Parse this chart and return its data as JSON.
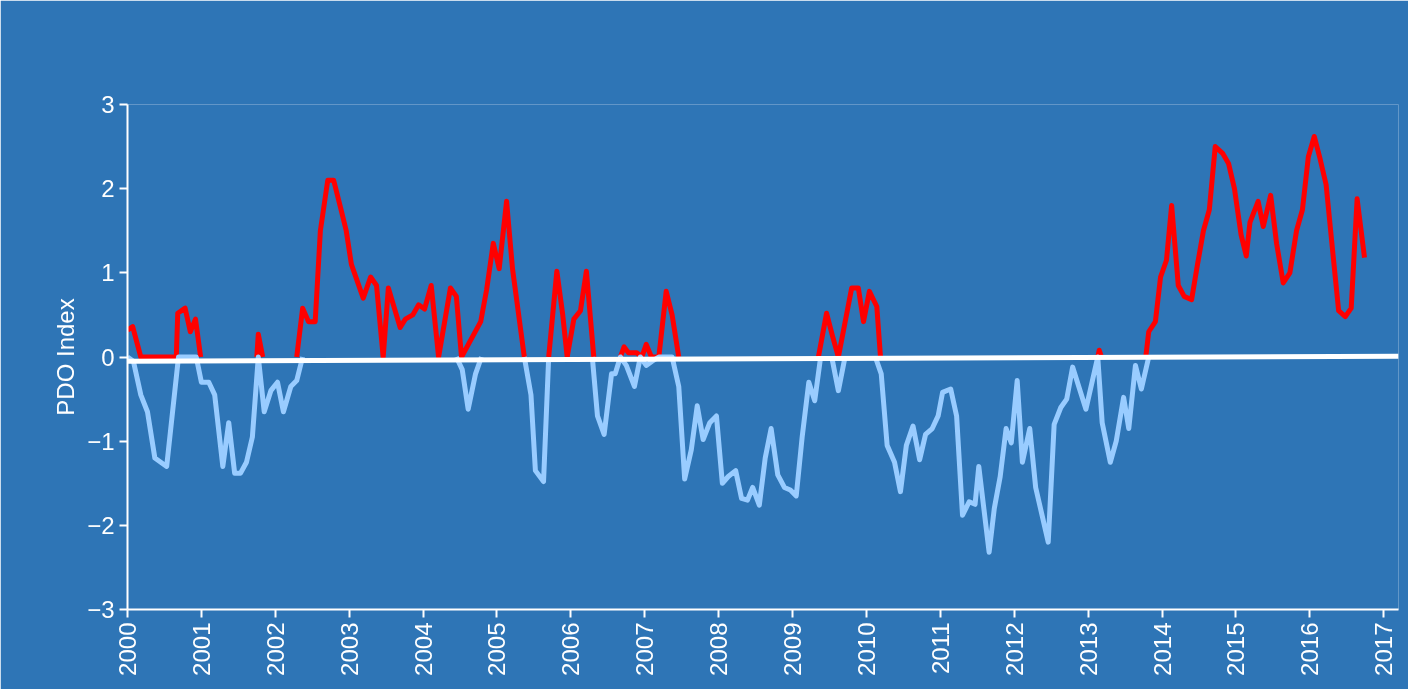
{
  "chart_data": {
    "type": "line",
    "ylabel": "PDO Index",
    "xlim": [
      2000,
      2017.2
    ],
    "ylim": [
      -3,
      3
    ],
    "xticks": [
      2000,
      2001,
      2002,
      2003,
      2004,
      2005,
      2006,
      2007,
      2008,
      2009,
      2010,
      2011,
      2012,
      2013,
      2014,
      2015,
      2016,
      2017
    ],
    "yticks": [
      -3,
      -2,
      -1,
      0,
      1,
      2,
      3
    ],
    "grid": false,
    "marker": "none",
    "line_style": "solid",
    "series": [
      {
        "color": "#ff0000",
        "x": [
          2000.0,
          2000.07,
          2000.18,
          2000.66,
          2000.68,
          2000.78,
          2000.85,
          2000.92,
          2000.99,
          2001.5,
          2001.75,
          2001.77,
          2001.83,
          2002.0,
          2002.29,
          2002.37,
          2002.45,
          2002.54,
          2002.61,
          2002.71,
          2002.79,
          2002.89,
          2002.96,
          2003.03,
          2003.19,
          2003.29,
          2003.37,
          2003.46,
          2003.53,
          2003.69,
          2003.76,
          2003.86,
          2003.94,
          2004.02,
          2004.11,
          2004.21,
          2004.37,
          2004.45,
          2004.52,
          2004.78,
          2004.86,
          2004.95,
          2005.03,
          2005.13,
          2005.21,
          2005.37,
          2005.5,
          2005.7,
          2005.81,
          2005.89,
          2005.95,
          2006.04,
          2006.13,
          2006.21,
          2006.31,
          2006.5,
          2006.67,
          2006.72,
          2006.78,
          2006.89,
          2006.96,
          2007.02,
          2007.09,
          2007.19,
          2007.29,
          2007.37,
          2007.46,
          2008.5,
          2009.35,
          2009.46,
          2009.54,
          2009.62,
          2009.8,
          2009.89,
          2009.96,
          2010.04,
          2010.14,
          2010.19,
          2011.5,
          2013.13,
          2013.15,
          2013.18,
          2013.5,
          2013.78,
          2013.82,
          2013.91,
          2013.98,
          2014.06,
          2014.13,
          2014.22,
          2014.3,
          2014.4,
          2014.48,
          2014.56,
          2014.64,
          2014.72,
          2014.82,
          2014.9,
          2014.98,
          2015.07,
          2015.14,
          2015.19,
          2015.3,
          2015.37,
          2015.47,
          2015.55,
          2015.64,
          2015.73,
          2015.82,
          2015.9,
          2015.98,
          2016.06,
          2016.14,
          2016.22,
          2016.31,
          2016.39,
          2016.48,
          2016.56,
          2016.64,
          2016.74
        ],
        "values": [
          0.32,
          0.36,
          0,
          0,
          0.52,
          0.58,
          0.3,
          0.45,
          0,
          null,
          0,
          0.27,
          0,
          null,
          0,
          0.58,
          0.42,
          0.42,
          1.5,
          2.1,
          2.1,
          1.75,
          1.5,
          1.1,
          0.7,
          0.95,
          0.85,
          0,
          0.82,
          0.35,
          0.45,
          0.5,
          0.62,
          0.57,
          0.85,
          0,
          0.82,
          0.72,
          0,
          0.42,
          0.8,
          1.35,
          1.05,
          1.85,
          1.05,
          0,
          null,
          0,
          1.02,
          0.5,
          0,
          0.45,
          0.55,
          1.02,
          0,
          null,
          0,
          0.12,
          0.05,
          0.05,
          0,
          0.15,
          0,
          0,
          0.78,
          0.5,
          0,
          null,
          0,
          0.52,
          0.25,
          0,
          0.82,
          0.82,
          0.42,
          0.78,
          0.6,
          0,
          null,
          0,
          0.08,
          0,
          null,
          0,
          0.3,
          0.42,
          0.95,
          1.15,
          1.8,
          0.85,
          0.72,
          0.68,
          1.1,
          1.5,
          1.75,
          2.5,
          2.42,
          2.3,
          2.0,
          1.45,
          1.2,
          1.6,
          1.85,
          1.55,
          1.92,
          1.35,
          0.88,
          1.0,
          1.5,
          1.75,
          2.38,
          2.62,
          2.35,
          2.05,
          1.25,
          0.55,
          0.48,
          0.58,
          1.88,
          1.18
        ]
      },
      {
        "color": "#99ccff",
        "x": [
          2000.0,
          2000.08,
          2000.18,
          2000.27,
          2000.37,
          2000.45,
          2000.53,
          2000.69,
          2000.93,
          2001.0,
          2001.1,
          2001.18,
          2001.29,
          2001.37,
          2001.45,
          2001.53,
          2001.61,
          2001.69,
          2001.77,
          2001.85,
          2001.94,
          2002.03,
          2002.11,
          2002.21,
          2002.29,
          2002.37,
          2003.5,
          2004.45,
          2004.53,
          2004.61,
          2004.71,
          2004.79,
          2005.0,
          2005.37,
          2005.46,
          2005.52,
          2005.63,
          2005.7,
          2006.0,
          2006.29,
          2006.36,
          2006.45,
          2006.55,
          2006.6,
          2006.67,
          2006.75,
          2006.86,
          2006.94,
          2007.02,
          2007.1,
          2007.19,
          2007.37,
          2007.46,
          2007.54,
          2007.63,
          2007.71,
          2007.79,
          2007.88,
          2007.97,
          2008.05,
          2008.13,
          2008.23,
          2008.31,
          2008.39,
          2008.46,
          2008.55,
          2008.63,
          2008.71,
          2008.8,
          2008.89,
          2008.97,
          2009.05,
          2009.13,
          2009.22,
          2009.3,
          2009.38,
          2009.45,
          2009.53,
          2009.62,
          2009.71,
          2009.9,
          2010.12,
          2010.2,
          2010.28,
          2010.38,
          2010.46,
          2010.54,
          2010.63,
          2010.72,
          2010.8,
          2010.89,
          2010.97,
          2011.03,
          2011.14,
          2011.22,
          2011.3,
          2011.39,
          2011.47,
          2011.52,
          2011.66,
          2011.73,
          2011.81,
          2011.89,
          2011.96,
          2012.04,
          2012.11,
          2012.21,
          2012.29,
          2012.46,
          2012.54,
          2012.63,
          2012.71,
          2012.79,
          2012.97,
          2013.13,
          2013.19,
          2013.3,
          2013.38,
          2013.48,
          2013.55,
          2013.64,
          2013.72,
          2013.82
        ],
        "values": [
          0,
          -0.05,
          -0.45,
          -0.65,
          -1.2,
          -1.25,
          -1.3,
          0,
          0,
          -0.3,
          -0.3,
          -0.45,
          -1.3,
          -0.78,
          -1.38,
          -1.38,
          -1.25,
          -0.95,
          0,
          -0.65,
          -0.4,
          -0.3,
          -0.65,
          -0.35,
          -0.28,
          0,
          null,
          0,
          -0.15,
          -0.62,
          -0.2,
          0,
          null,
          0,
          -0.45,
          -1.35,
          -1.48,
          0,
          null,
          0,
          -0.7,
          -0.92,
          -0.2,
          -0.2,
          0,
          -0.1,
          -0.35,
          0,
          -0.1,
          -0.05,
          0,
          0,
          -0.35,
          -1.45,
          -1.1,
          -0.58,
          -0.98,
          -0.78,
          -0.7,
          -1.5,
          -1.42,
          -1.35,
          -1.68,
          -1.7,
          -1.55,
          -1.76,
          -1.2,
          -0.85,
          -1.4,
          -1.55,
          -1.58,
          -1.65,
          -0.95,
          -0.3,
          -0.52,
          0,
          null,
          0,
          -0.4,
          0,
          null,
          0,
          -0.2,
          -1.05,
          -1.25,
          -1.6,
          -1.05,
          -0.82,
          -1.22,
          -0.92,
          -0.85,
          -0.7,
          -0.42,
          -0.38,
          -0.7,
          -1.88,
          -1.72,
          -1.75,
          -1.3,
          -2.32,
          -1.8,
          -1.42,
          -0.85,
          -1.02,
          -0.28,
          -1.25,
          -0.85,
          -1.55,
          -2.2,
          -0.8,
          -0.6,
          -0.5,
          -0.12,
          -0.62,
          0,
          -0.78,
          -1.25,
          -1.0,
          -0.48,
          -0.85,
          -0.1,
          -0.38,
          0
        ]
      },
      {
        "color": "#ffffff",
        "x": [
          2000.0,
          2017.2
        ],
        "values": [
          -0.05,
          0.01
        ]
      }
    ]
  }
}
